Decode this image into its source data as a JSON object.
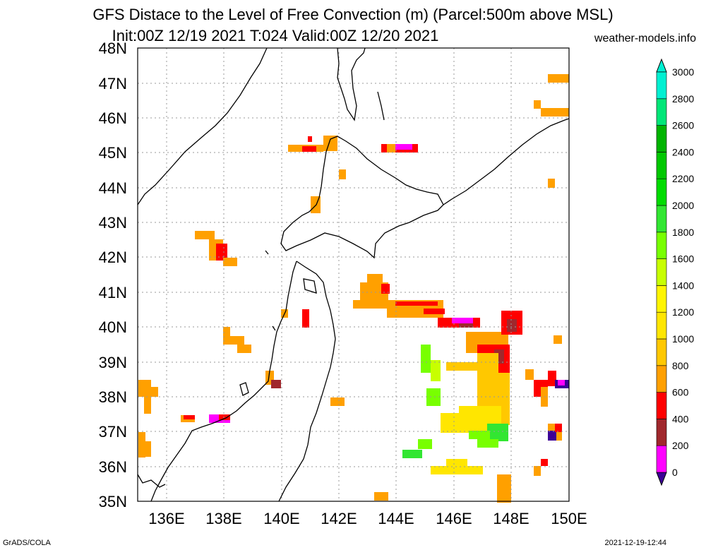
{
  "header": {
    "title_line1": "GFS Distace to the Level of Free Convection (m) (Parcel:500m above MSL)",
    "title_line2": "Init:00Z 12/19 2021 T:024 Valid:00Z 12/20 2021",
    "credit": "weather-models.info"
  },
  "footer": {
    "left": "GrADS/COLA",
    "right": "2021-12-19-12:44"
  },
  "map": {
    "lat_labels": [
      "48N",
      "47N",
      "46N",
      "45N",
      "44N",
      "43N",
      "42N",
      "41N",
      "40N",
      "39N",
      "38N",
      "37N",
      "36N",
      "35N"
    ],
    "lon_labels": [
      "136E",
      "138E",
      "140E",
      "142E",
      "144E",
      "146E",
      "148E",
      "150E"
    ]
  },
  "colorbar": {
    "tick_labels": [
      "0",
      "200",
      "400",
      "600",
      "800",
      "1000",
      "1200",
      "1400",
      "1600",
      "1800",
      "2000",
      "2200",
      "2400",
      "2600",
      "2800",
      "3000"
    ],
    "colors": [
      "#3c0096",
      "#ff00ff",
      "#a0282d",
      "#ff0000",
      "#ffa000",
      "#ffc800",
      "#ffe600",
      "#fff500",
      "#c8ff00",
      "#78ff00",
      "#32e632",
      "#00dc00",
      "#00c800",
      "#00b400",
      "#00e678",
      "#00f0d2"
    ]
  },
  "colors": {
    "coastline": "#000000",
    "grid": "#999999"
  }
}
